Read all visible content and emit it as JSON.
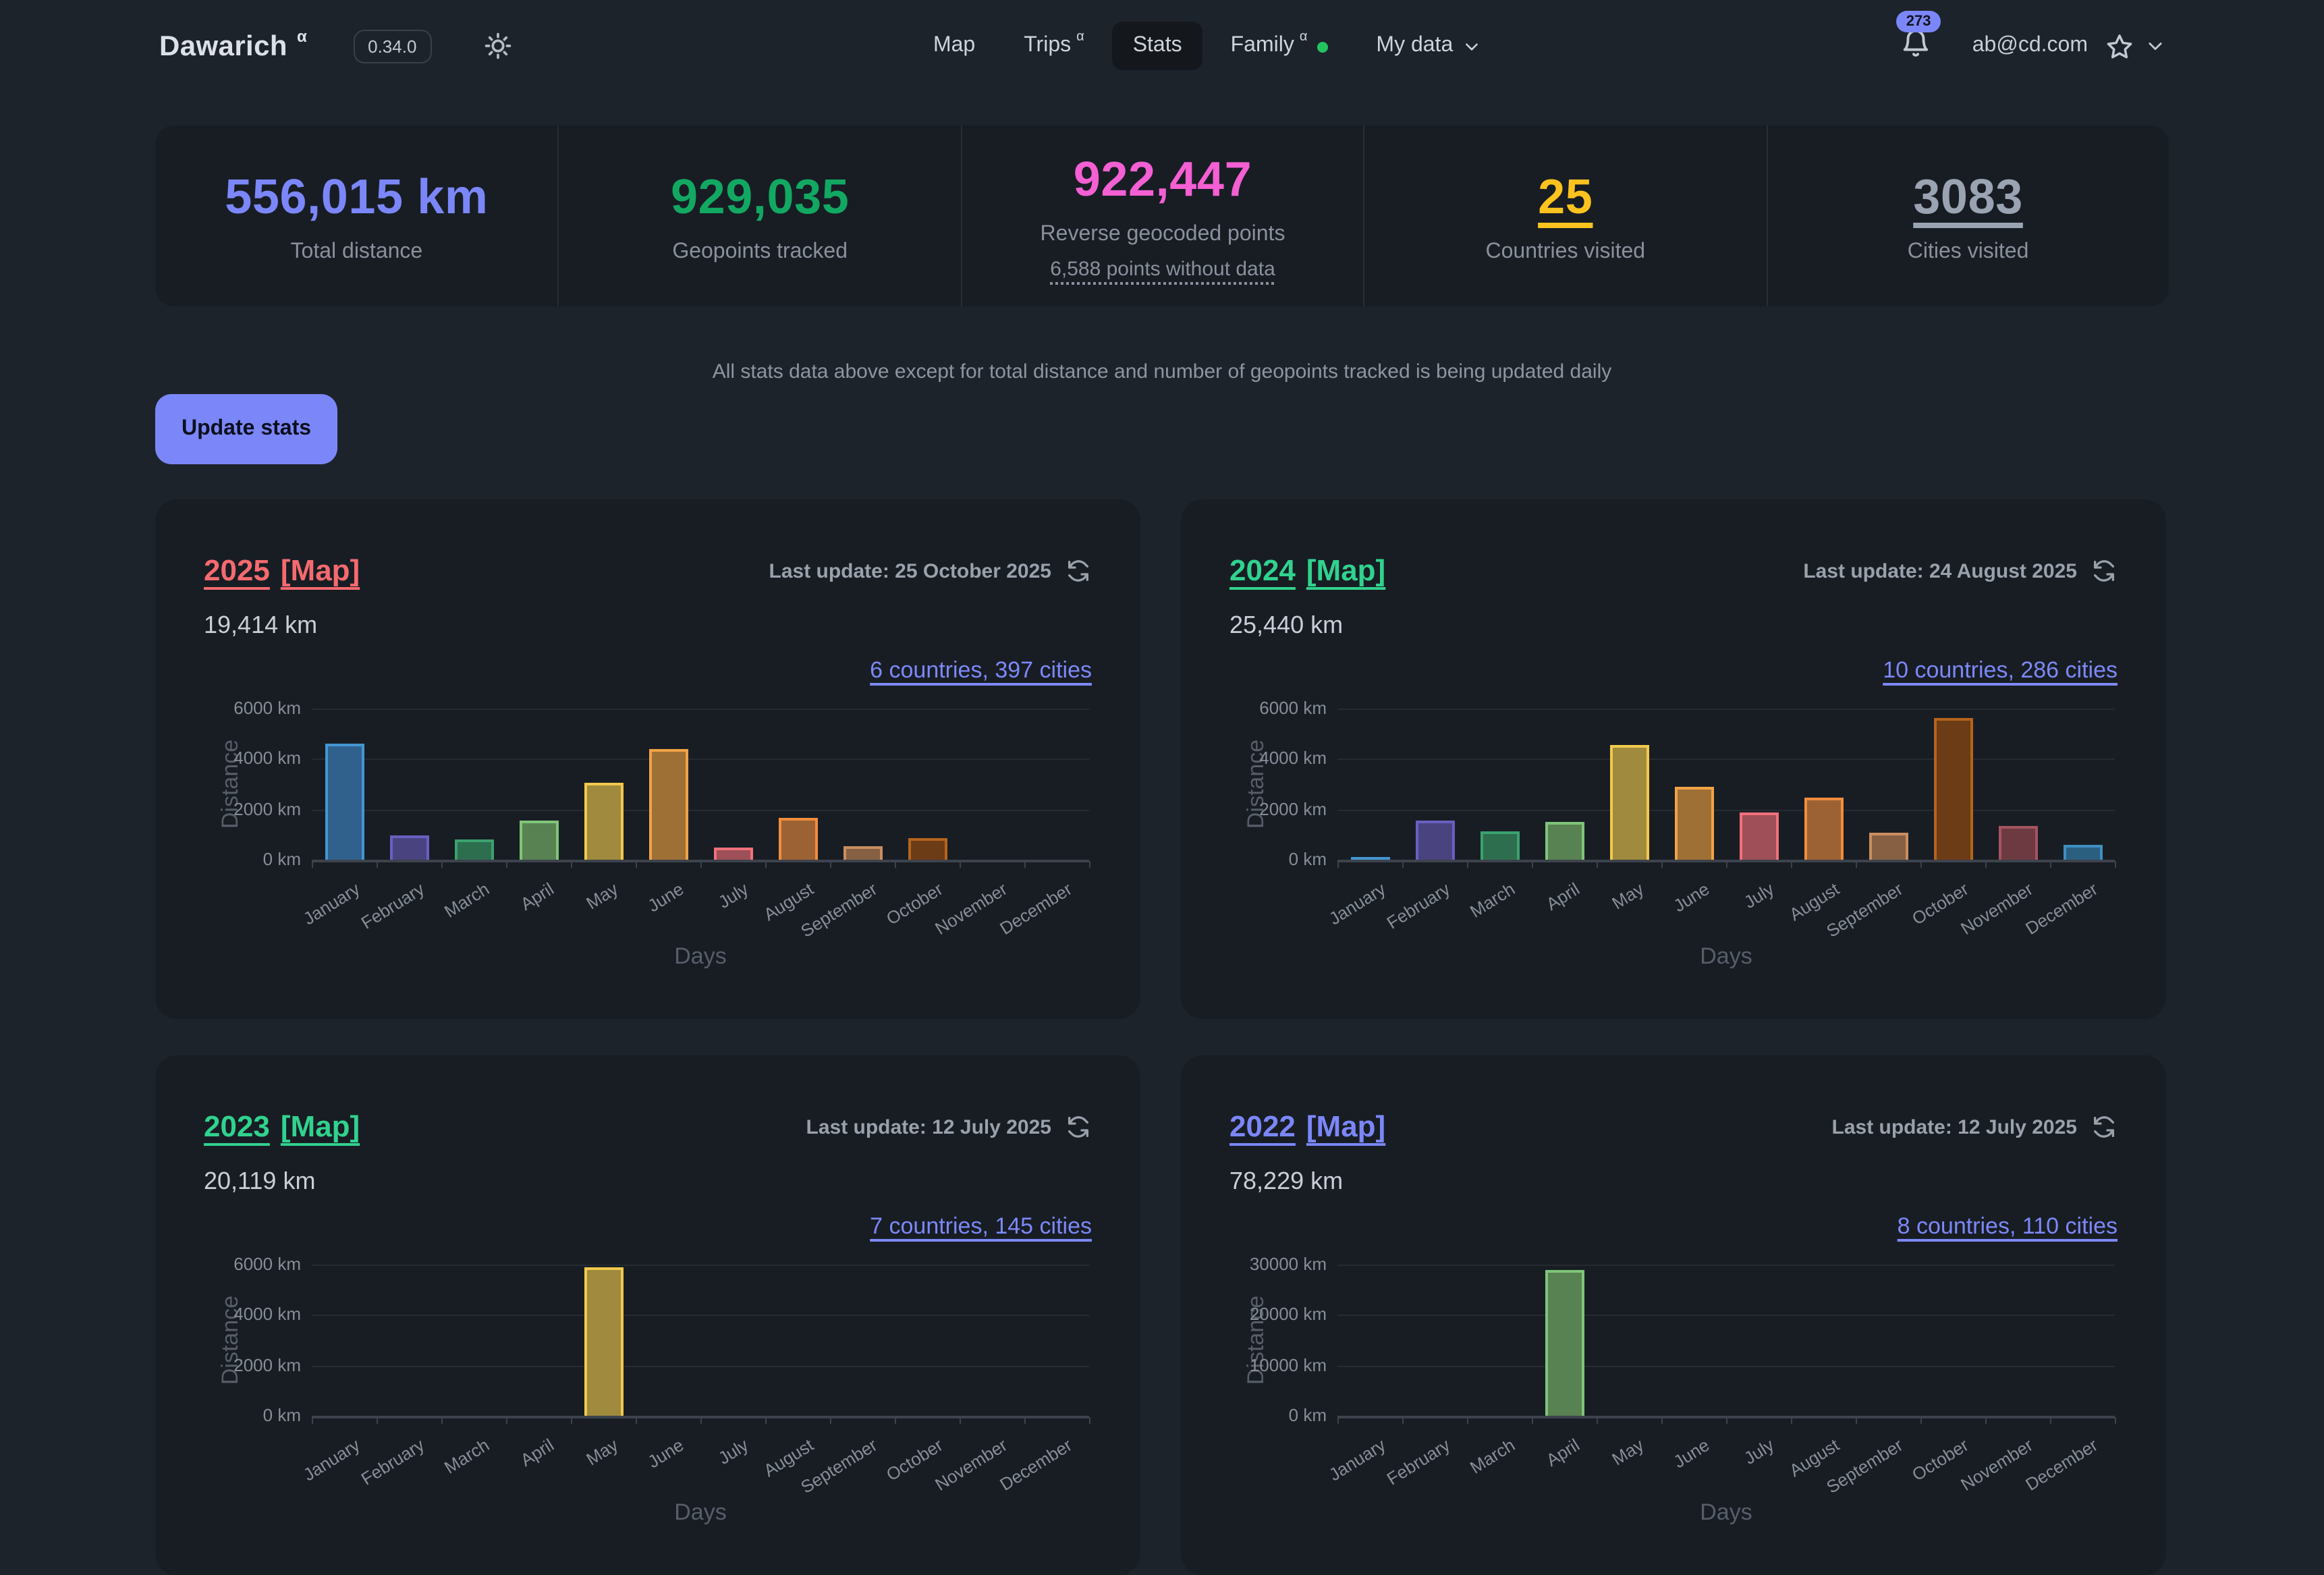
{
  "app": {
    "name": "Dawarich",
    "alpha_badge": "α",
    "version": "0.34.0"
  },
  "nav": {
    "items": [
      {
        "label": "Map",
        "active": false
      },
      {
        "label": "Trips",
        "sup": "α",
        "active": false
      },
      {
        "label": "Stats",
        "active": true
      },
      {
        "label": "Family",
        "sup": "α",
        "status_dot_color": "#23c55e",
        "active": false
      },
      {
        "label": "My data",
        "has_dropdown": true,
        "active": false
      }
    ]
  },
  "user_area": {
    "notification_count": "273",
    "email": "ab@cd.com"
  },
  "summary_stats": {
    "cells": [
      {
        "value": "556,015 km",
        "label": "Total distance",
        "color": "#7b87f8"
      },
      {
        "value": "929,035",
        "label": "Geopoints tracked",
        "color": "#12a862"
      },
      {
        "value": "922,447",
        "label": "Reverse geocoded points",
        "sub_link": "6,588 points without data",
        "color": "#f45fd3"
      },
      {
        "value": "25",
        "label": "Countries visited",
        "color": "#fcc21d",
        "underlined": true
      },
      {
        "value": "3083",
        "label": "Cities visited",
        "color": "#9aa3b1",
        "underlined": true
      }
    ],
    "note": "All stats data above except for total distance and number of geopoints tracked is being updated daily"
  },
  "actions": {
    "update_stats": "Update stats"
  },
  "year_cards": [
    {
      "year": "2025",
      "map_link": "[Map]",
      "title_color": "#f56a6f",
      "last_update": "Last update: 25 October 2025",
      "distance": "19,414 km",
      "geo_link": "6 countries, 397 cities"
    },
    {
      "year": "2024",
      "map_link": "[Map]",
      "title_color": "#31d28e",
      "last_update": "Last update: 24 August 2025",
      "distance": "25,440 km",
      "geo_link": "10 countries, 286 cities"
    },
    {
      "year": "2023",
      "map_link": "[Map]",
      "title_color": "#31d28e",
      "last_update": "Last update: 12 July 2025",
      "distance": "20,119 km",
      "geo_link": "7 countries, 145 cities"
    },
    {
      "year": "2022",
      "map_link": "[Map]",
      "title_color": "#7b87f8",
      "last_update": "Last update: 12 July 2025",
      "distance": "78,229 km",
      "geo_link": "8 countries, 110 cities"
    }
  ],
  "chart_data": [
    {
      "type": "bar",
      "title": "2025 monthly distance",
      "categories": [
        "January",
        "February",
        "March",
        "April",
        "May",
        "June",
        "July",
        "August",
        "September",
        "October",
        "November",
        "December"
      ],
      "values": [
        4600,
        950,
        820,
        1550,
        3050,
        4400,
        480,
        1650,
        520,
        850,
        0,
        0
      ],
      "xlabel": "Days",
      "ylabel": "Distance",
      "ylim": [
        0,
        6000
      ],
      "ytick_step": 2000,
      "ytick_labels": [
        "0 km",
        "2000 km",
        "4000 km",
        "6000 km"
      ],
      "grid": true,
      "legend": false,
      "clipped": false
    },
    {
      "type": "bar",
      "title": "2024 monthly distance",
      "categories": [
        "January",
        "February",
        "March",
        "April",
        "May",
        "June",
        "July",
        "August",
        "September",
        "October",
        "November",
        "December"
      ],
      "values": [
        100,
        1550,
        1150,
        1500,
        4550,
        2900,
        1850,
        2450,
        1050,
        5600,
        1350,
        580
      ],
      "xlabel": "Days",
      "ylabel": "Distance",
      "ylim": [
        0,
        6000
      ],
      "ytick_step": 2000,
      "ytick_labels": [
        "0 km",
        "2000 km",
        "4000 km",
        "6000 km"
      ],
      "grid": true,
      "legend": false,
      "clipped": false
    },
    {
      "type": "bar",
      "title": "2023 monthly distance (clipped at viewport bottom, only May bar visible)",
      "categories": [
        "January",
        "February",
        "March",
        "April",
        "May",
        "June",
        "July",
        "August",
        "September",
        "October",
        "November",
        "December"
      ],
      "values": [
        null,
        null,
        null,
        null,
        5900,
        null,
        null,
        null,
        null,
        null,
        null,
        null
      ],
      "xlabel": "Days",
      "ylabel": "Distance",
      "ylim": [
        0,
        6000
      ],
      "ytick_step": 2000,
      "ytick_labels": [
        "0 km",
        "2000 km",
        "4000 km",
        "6000 km"
      ],
      "grid": true,
      "legend": false,
      "clipped": true
    },
    {
      "type": "bar",
      "title": "2022 monthly distance (clipped at viewport bottom, only April bar visible)",
      "categories": [
        "January",
        "February",
        "March",
        "April",
        "May",
        "June",
        "July",
        "August",
        "September",
        "October",
        "November",
        "December"
      ],
      "values": [
        null,
        null,
        null,
        29000,
        null,
        null,
        null,
        null,
        null,
        null,
        null,
        null
      ],
      "xlabel": "Days",
      "ylabel": "Distance",
      "ylim": [
        0,
        30000
      ],
      "ytick_step": 10000,
      "ytick_labels": [
        "0 km",
        "10000 km",
        "20000 km",
        "30000 km"
      ],
      "grid": true,
      "legend": false,
      "clipped": true
    }
  ],
  "chart_style": {
    "bar_border_colors": [
      "#4496d2",
      "#6a5fc0",
      "#3ba26d",
      "#7fc579",
      "#f2c94c",
      "#f2a345",
      "#f2707b",
      "#f18d3e",
      "#c98e60",
      "#b5641c",
      "#a5545e",
      "#3f8fc0"
    ],
    "bar_fill_colors": [
      "#30618d",
      "#494380",
      "#2d6e4f",
      "#588252",
      "#9f8a3e",
      "#9e7036",
      "#9e4f58",
      "#9d6233",
      "#876043",
      "#6b3c16",
      "#6e3a42",
      "#2b5f80"
    ]
  }
}
